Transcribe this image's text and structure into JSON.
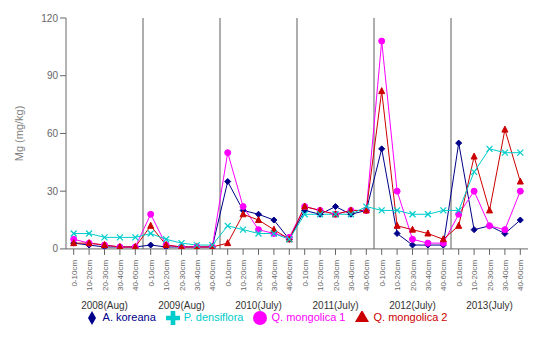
{
  "chart_data": {
    "type": "line",
    "categories": [
      "0-10cm",
      "10-20cm",
      "20-30cm",
      "30-40cm",
      "40-60cm",
      "0-10cm",
      "10-20cm",
      "20-30cm",
      "30-40cm",
      "40-60cm",
      "0-10cm",
      "10-20cm",
      "20-30cm",
      "30-40cm",
      "40-60cm",
      "0-10cm",
      "10-20cm",
      "20-30cm",
      "30-40cm",
      "40-60cm",
      "0-10cm",
      "10-20cm",
      "20-30cm",
      "30-40cm",
      "40-60cm",
      "0-10cm",
      "10-20cm",
      "20-30cm",
      "30-40cm",
      "40-60cm"
    ],
    "annotations": [
      "2008(Aug)",
      "2009(Aug)",
      "2010(July)",
      "2011(July)",
      "2012(July)",
      "2013(July)"
    ],
    "y_label": "Mg (mg/kg)",
    "ylim": [
      0,
      120
    ],
    "yticks": [
      0,
      30,
      60,
      90,
      120
    ],
    "grid": false,
    "legend": "bottom",
    "series": [
      {
        "name": "A. koreana",
        "color": "#00008B",
        "marker": "diamond",
        "values": [
          3,
          2,
          1,
          1,
          1,
          2,
          1,
          1,
          1,
          1,
          35,
          20,
          18,
          15,
          5,
          20,
          18,
          22,
          18,
          20,
          52,
          8,
          2,
          2,
          2,
          55,
          10,
          12,
          8,
          15
        ]
      },
      {
        "name": "Q. mongolica 1",
        "color": "#FF00FF",
        "marker": "circle",
        "values": [
          5,
          3,
          2,
          1,
          1,
          18,
          2,
          1,
          1,
          1,
          50,
          22,
          10,
          8,
          6,
          22,
          20,
          18,
          20,
          20,
          108,
          30,
          5,
          3,
          3,
          18,
          30,
          12,
          10,
          30
        ]
      },
      {
        "name": "Q. mongolica 2",
        "color": "#CC0000",
        "marker": "triangle",
        "values": [
          3,
          3,
          2,
          1,
          1,
          12,
          2,
          1,
          1,
          1,
          3,
          18,
          15,
          10,
          5,
          22,
          20,
          18,
          20,
          20,
          82,
          12,
          10,
          8,
          5,
          12,
          48,
          20,
          62,
          35
        ]
      },
      {
        "name": "P. densiflora",
        "color": "#00CCCC",
        "marker": "x",
        "values": [
          8,
          8,
          6,
          6,
          6,
          8,
          5,
          3,
          2,
          2,
          12,
          10,
          8,
          8,
          5,
          18,
          18,
          18,
          18,
          22,
          20,
          20,
          18,
          18,
          20,
          20,
          40,
          52,
          50,
          50
        ]
      }
    ]
  }
}
